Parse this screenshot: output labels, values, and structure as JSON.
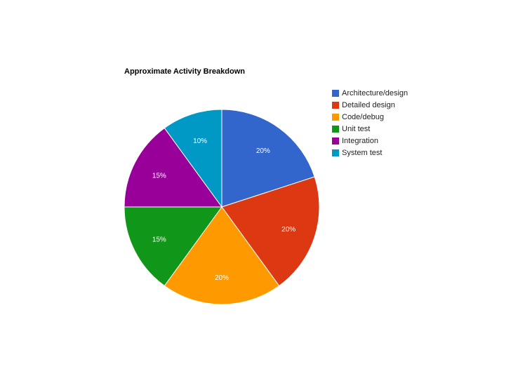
{
  "chart_data": {
    "type": "pie",
    "title": "Approximate Activity Breakdown",
    "legend_position": "right",
    "slices": [
      {
        "label": "Architecture/design",
        "value": 20,
        "display": "20%",
        "color": "#3366cc"
      },
      {
        "label": "Detailed design",
        "value": 20,
        "display": "20%",
        "color": "#dc3912"
      },
      {
        "label": "Code/debug",
        "value": 20,
        "display": "20%",
        "color": "#ff9900"
      },
      {
        "label": "Unit test",
        "value": 15,
        "display": "15%",
        "color": "#109618"
      },
      {
        "label": "Integration",
        "value": 15,
        "display": "15%",
        "color": "#990099"
      },
      {
        "label": "System test",
        "value": 10,
        "display": "10%",
        "color": "#0099c6"
      }
    ]
  }
}
